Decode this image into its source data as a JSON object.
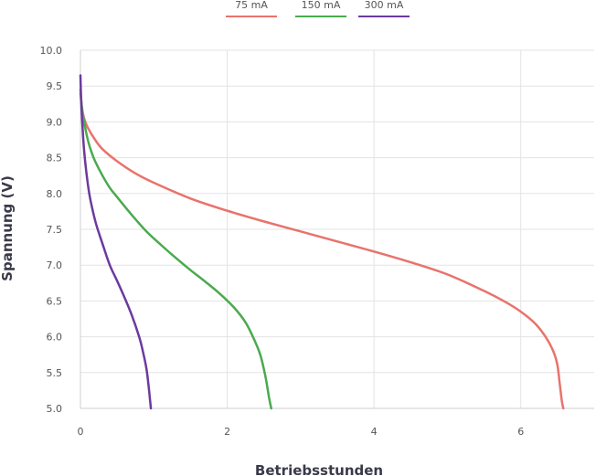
{
  "chart_data": {
    "type": "line",
    "title": "",
    "xlabel": "Betriebsstunden",
    "ylabel": "Spannung (V)",
    "xlim": [
      0,
      7
    ],
    "ylim": [
      5.0,
      10.0
    ],
    "x_ticks": [
      0,
      2,
      4,
      6
    ],
    "x_tick_labels": [
      "0",
      "2",
      "4",
      "6"
    ],
    "y_ticks": [
      5.0,
      5.5,
      6.0,
      6.5,
      7.0,
      7.5,
      8.0,
      8.5,
      9.0,
      9.5,
      10.0
    ],
    "y_tick_labels": [
      "5.0",
      "5.5",
      "6.0",
      "6.5",
      "7.0",
      "7.5",
      "8.0",
      "8.5",
      "9.0",
      "9.5",
      "10.0"
    ],
    "grid": true,
    "legend_position": "top-center",
    "series": [
      {
        "name": "75 mA",
        "color": "#e8736c",
        "x": [
          0,
          0.02,
          0.05,
          0.1,
          0.2,
          0.3,
          0.5,
          0.75,
          1.0,
          1.5,
          2.0,
          2.5,
          3.0,
          3.5,
          4.0,
          4.5,
          5.0,
          5.5,
          5.8,
          6.0,
          6.2,
          6.35,
          6.45,
          6.5,
          6.53,
          6.56,
          6.58
        ],
        "y": [
          9.4,
          9.2,
          9.05,
          8.92,
          8.75,
          8.62,
          8.45,
          8.28,
          8.15,
          7.93,
          7.76,
          7.61,
          7.47,
          7.33,
          7.19,
          7.04,
          6.87,
          6.64,
          6.48,
          6.35,
          6.18,
          5.98,
          5.78,
          5.6,
          5.35,
          5.1,
          5.0
        ]
      },
      {
        "name": "150 mA",
        "color": "#4aaa4e",
        "x": [
          0,
          0.02,
          0.05,
          0.1,
          0.15,
          0.2,
          0.3,
          0.4,
          0.5,
          0.7,
          0.9,
          1.1,
          1.3,
          1.5,
          1.7,
          1.9,
          2.1,
          2.25,
          2.35,
          2.45,
          2.52,
          2.57,
          2.6
        ],
        "y": [
          9.45,
          9.2,
          9.0,
          8.75,
          8.58,
          8.45,
          8.25,
          8.08,
          7.95,
          7.7,
          7.47,
          7.28,
          7.1,
          6.93,
          6.77,
          6.6,
          6.4,
          6.2,
          6.0,
          5.75,
          5.45,
          5.15,
          5.0
        ]
      },
      {
        "name": "300 mA",
        "color": "#6c3a9e",
        "x": [
          0,
          0.01,
          0.03,
          0.05,
          0.08,
          0.12,
          0.17,
          0.22,
          0.3,
          0.4,
          0.5,
          0.6,
          0.7,
          0.8,
          0.85,
          0.9,
          0.93,
          0.95,
          0.96
        ],
        "y": [
          9.65,
          9.3,
          8.9,
          8.6,
          8.3,
          8.0,
          7.75,
          7.55,
          7.3,
          7.0,
          6.78,
          6.55,
          6.3,
          6.0,
          5.8,
          5.55,
          5.3,
          5.1,
          5.0
        ]
      }
    ]
  }
}
